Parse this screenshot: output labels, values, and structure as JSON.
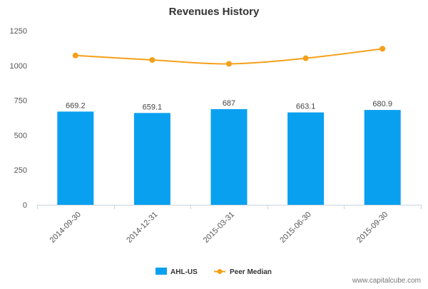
{
  "chart_data": {
    "type": "bar",
    "title": "Revenues History",
    "categories": [
      "2014-09-30",
      "2014-12-31",
      "2015-03-31",
      "2015-06-30",
      "2015-09-30"
    ],
    "series": [
      {
        "name": "AHL-US",
        "kind": "bar",
        "color": "#0aa0f0",
        "values": [
          669.2,
          659.1,
          687,
          663.1,
          680.9
        ],
        "labels": [
          "669.2",
          "659.1",
          "687",
          "663.1",
          "680.9"
        ]
      },
      {
        "name": "Peer Median",
        "kind": "line",
        "color": "#f5a01a",
        "values": [
          1072,
          1040,
          1012,
          1052,
          1120
        ]
      }
    ],
    "y_ticks": [
      0,
      250,
      500,
      750,
      1000,
      1250
    ],
    "ylim": [
      0,
      1250
    ],
    "grid": false,
    "legend_position": "bottom-center"
  },
  "watermark": "www.capitalcube.com"
}
